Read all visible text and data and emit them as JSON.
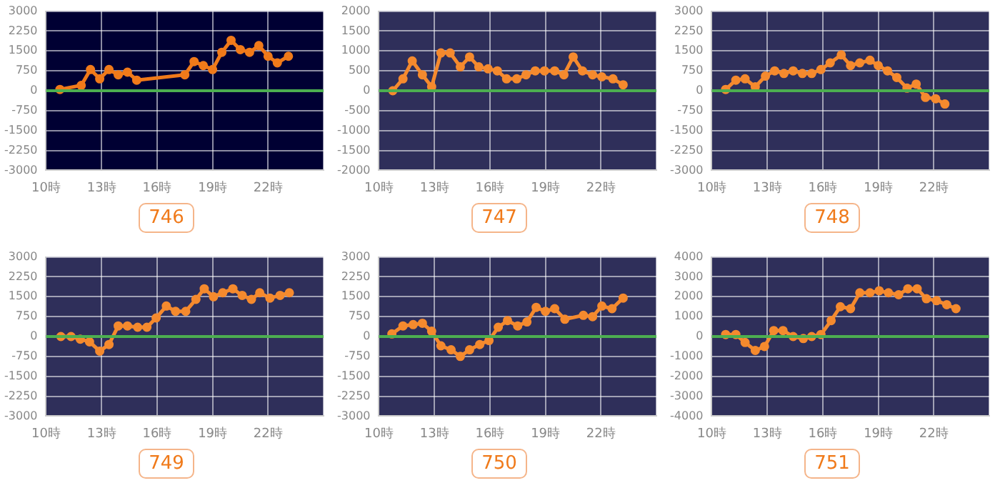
{
  "chart_data": [
    {
      "type": "line",
      "title": "746",
      "color": "#f07a1a",
      "marker": "circle",
      "grid": true,
      "x": [
        10.75,
        11.9,
        12.4,
        12.9,
        13.4,
        13.9,
        14.4,
        14.9,
        17.5,
        18.0,
        18.5,
        19.0,
        19.5,
        20.0,
        20.5,
        21.0,
        21.5,
        22.0,
        22.5,
        23.1
      ],
      "values": [
        50,
        200,
        800,
        450,
        800,
        600,
        700,
        400,
        600,
        1100,
        950,
        800,
        1450,
        1900,
        1550,
        1450,
        1700,
        1300,
        1050,
        1300
      ],
      "xlim": [
        10,
        25
      ],
      "xticks": [
        {
          "value": 10,
          "label": "10時"
        },
        {
          "value": 13,
          "label": "13時"
        },
        {
          "value": 16,
          "label": "16時"
        },
        {
          "value": 19,
          "label": "19時"
        },
        {
          "value": 22,
          "label": "22時"
        },
        {
          "value": 25,
          "label": null
        }
      ],
      "ylim": [
        -3000,
        3000
      ],
      "yticks": [
        -3000,
        -2250,
        -1500,
        -750,
        0,
        750,
        1500,
        2250,
        3000
      ],
      "ref_lines": [
        {
          "axis": "y",
          "value": 0,
          "color": "#4caf50"
        }
      ]
    },
    {
      "type": "line",
      "title": "747",
      "color": "#f58a2e",
      "marker": "circle",
      "grid": true,
      "x": [
        10.75,
        11.3,
        11.8,
        12.35,
        12.85,
        13.35,
        13.85,
        14.4,
        14.9,
        15.4,
        15.9,
        16.4,
        16.9,
        17.45,
        17.95,
        18.45,
        18.95,
        19.5,
        20.0,
        20.5,
        21.0,
        21.55,
        22.05,
        22.65,
        23.2
      ],
      "values": [
        0,
        300,
        750,
        400,
        100,
        950,
        950,
        600,
        850,
        600,
        550,
        500,
        300,
        300,
        400,
        500,
        500,
        500,
        400,
        850,
        500,
        400,
        350,
        300,
        150
      ],
      "xlim": [
        10,
        25
      ],
      "xticks": [
        {
          "value": 10,
          "label": "10時"
        },
        {
          "value": 13,
          "label": "13時"
        },
        {
          "value": 16,
          "label": "16時"
        },
        {
          "value": 19,
          "label": "19時"
        },
        {
          "value": 22,
          "label": "22時"
        },
        {
          "value": 25,
          "label": null
        }
      ],
      "ylim": [
        -2000,
        2000
      ],
      "yticks": [
        -2000,
        -1500,
        -1000,
        -500,
        0,
        500,
        1000,
        1500,
        2000
      ],
      "ref_lines": [
        {
          "axis": "y",
          "value": 0,
          "color": "#4caf50"
        }
      ]
    },
    {
      "type": "line",
      "title": "748",
      "color": "#f58a2e",
      "marker": "circle",
      "grid": true,
      "x": [
        10.75,
        11.3,
        11.8,
        12.35,
        12.9,
        13.4,
        13.9,
        14.4,
        14.9,
        15.4,
        15.9,
        16.4,
        17.0,
        17.5,
        18.0,
        18.55,
        19.0,
        19.5,
        20.0,
        20.55,
        21.05,
        21.55,
        22.1,
        22.6
      ],
      "values": [
        50,
        400,
        450,
        150,
        550,
        750,
        650,
        750,
        650,
        650,
        800,
        1050,
        1350,
        950,
        1050,
        1150,
        950,
        750,
        500,
        100,
        250,
        -250,
        -300,
        -500
      ],
      "xlim": [
        10,
        25
      ],
      "xticks": [
        {
          "value": 10,
          "label": "10時"
        },
        {
          "value": 13,
          "label": "13時"
        },
        {
          "value": 16,
          "label": "16時"
        },
        {
          "value": 19,
          "label": "19時"
        },
        {
          "value": 22,
          "label": "22時"
        },
        {
          "value": 25,
          "label": null
        }
      ],
      "ylim": [
        -3000,
        3000
      ],
      "yticks": [
        -3000,
        -2250,
        -1500,
        -750,
        0,
        750,
        1500,
        2250,
        3000
      ],
      "ref_lines": [
        {
          "axis": "y",
          "value": 0,
          "color": "#4caf50"
        }
      ]
    },
    {
      "type": "line",
      "title": "749",
      "color": "#f58a2e",
      "marker": "circle",
      "grid": true,
      "x": [
        10.8,
        11.35,
        11.85,
        12.35,
        12.9,
        13.4,
        13.9,
        14.4,
        14.95,
        15.45,
        15.95,
        16.5,
        17.0,
        17.55,
        18.1,
        18.55,
        19.05,
        19.55,
        20.1,
        20.6,
        21.1,
        21.55,
        22.1,
        22.65,
        23.15
      ],
      "values": [
        0,
        0,
        -100,
        -200,
        -550,
        -300,
        400,
        400,
        350,
        350,
        700,
        1150,
        950,
        950,
        1400,
        1800,
        1500,
        1650,
        1800,
        1550,
        1400,
        1650,
        1450,
        1550,
        1650
      ],
      "xlim": [
        10,
        25
      ],
      "xticks": [
        {
          "value": 10,
          "label": "10時"
        },
        {
          "value": 13,
          "label": "13時"
        },
        {
          "value": 16,
          "label": "16時"
        },
        {
          "value": 19,
          "label": "19時"
        },
        {
          "value": 22,
          "label": "22時"
        },
        {
          "value": 25,
          "label": null
        }
      ],
      "ylim": [
        -3000,
        3000
      ],
      "yticks": [
        -3000,
        -2250,
        -1500,
        -750,
        0,
        750,
        1500,
        2250,
        3000
      ],
      "ref_lines": [
        {
          "axis": "y",
          "value": 0,
          "color": "#4caf50"
        }
      ]
    },
    {
      "type": "line",
      "title": "750",
      "color": "#f58a2e",
      "marker": "circle",
      "grid": true,
      "x": [
        10.7,
        11.3,
        11.85,
        12.35,
        12.85,
        13.35,
        13.9,
        14.4,
        14.9,
        15.45,
        15.95,
        16.45,
        16.95,
        17.5,
        18.0,
        18.5,
        19.0,
        19.5,
        20.05,
        21.05,
        21.55,
        22.05,
        22.6,
        23.2
      ],
      "values": [
        100,
        400,
        450,
        500,
        200,
        -350,
        -500,
        -750,
        -500,
        -300,
        -150,
        350,
        600,
        400,
        550,
        1100,
        950,
        1050,
        650,
        800,
        750,
        1150,
        1050,
        1450
      ],
      "xlim": [
        10,
        25
      ],
      "xticks": [
        {
          "value": 10,
          "label": "10時"
        },
        {
          "value": 13,
          "label": "13時"
        },
        {
          "value": 16,
          "label": "16時"
        },
        {
          "value": 19,
          "label": "19時"
        },
        {
          "value": 22,
          "label": "22時"
        },
        {
          "value": 25,
          "label": null
        }
      ],
      "ylim": [
        -3000,
        3000
      ],
      "yticks": [
        -3000,
        -2250,
        -1500,
        -750,
        0,
        750,
        1500,
        2250,
        3000
      ],
      "ref_lines": [
        {
          "axis": "y",
          "value": 0,
          "color": "#4caf50"
        }
      ]
    },
    {
      "type": "line",
      "title": "751",
      "color": "#f58a2e",
      "marker": "circle",
      "grid": true,
      "x": [
        10.75,
        11.3,
        11.8,
        12.35,
        12.85,
        13.35,
        13.85,
        14.4,
        14.95,
        15.4,
        15.9,
        16.45,
        16.95,
        17.5,
        18.0,
        18.55,
        19.05,
        19.55,
        20.1,
        20.6,
        21.1,
        21.6,
        22.15,
        22.7,
        23.2
      ],
      "values": [
        100,
        100,
        -300,
        -700,
        -500,
        300,
        300,
        0,
        -100,
        0,
        100,
        800,
        1500,
        1400,
        2200,
        2200,
        2300,
        2200,
        2100,
        2400,
        2400,
        1900,
        1800,
        1600,
        1400
      ],
      "xlim": [
        10,
        25
      ],
      "xticks": [
        {
          "value": 10,
          "label": "10時"
        },
        {
          "value": 13,
          "label": "13時"
        },
        {
          "value": 16,
          "label": "16時"
        },
        {
          "value": 19,
          "label": "19時"
        },
        {
          "value": 22,
          "label": "22時"
        },
        {
          "value": 25,
          "label": null
        }
      ],
      "ylim": [
        -4000,
        4000
      ],
      "yticks": [
        -4000,
        -3000,
        -2000,
        -1000,
        0,
        1000,
        2000,
        3000,
        4000
      ],
      "ref_lines": [
        {
          "axis": "y",
          "value": 0,
          "color": "#4caf50"
        }
      ]
    }
  ]
}
